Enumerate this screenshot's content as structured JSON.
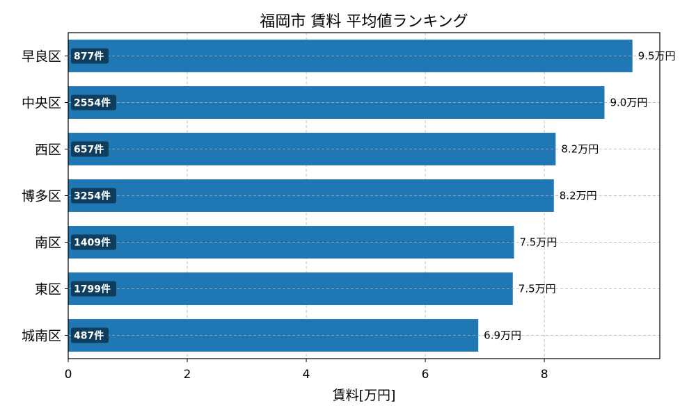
{
  "chart_data": {
    "type": "bar",
    "orientation": "horizontal",
    "title": "福岡市 賃料 平均値ランキング",
    "xlabel": "賃料[万円]",
    "ylabel": "",
    "xlim": [
      0,
      10
    ],
    "xticks": [
      0,
      2,
      4,
      6,
      8
    ],
    "grid": true,
    "categories": [
      "早良区",
      "中央区",
      "西区",
      "博多区",
      "南区",
      "東区",
      "城南区"
    ],
    "values": [
      9.48,
      9.01,
      8.19,
      8.16,
      7.49,
      7.47,
      6.89
    ],
    "value_labels": [
      "9.5万円",
      "9.0万円",
      "8.2万円",
      "8.2万円",
      "7.5万円",
      "7.5万円",
      "6.9万円"
    ],
    "count_labels": [
      "877件",
      "2554件",
      "657件",
      "3254件",
      "1409件",
      "1799件",
      "487件"
    ],
    "colors": {
      "bar": "#1f77b4",
      "badge": "#0f3d5e",
      "grid": "#b0b0b0",
      "axis": "#000000"
    }
  }
}
